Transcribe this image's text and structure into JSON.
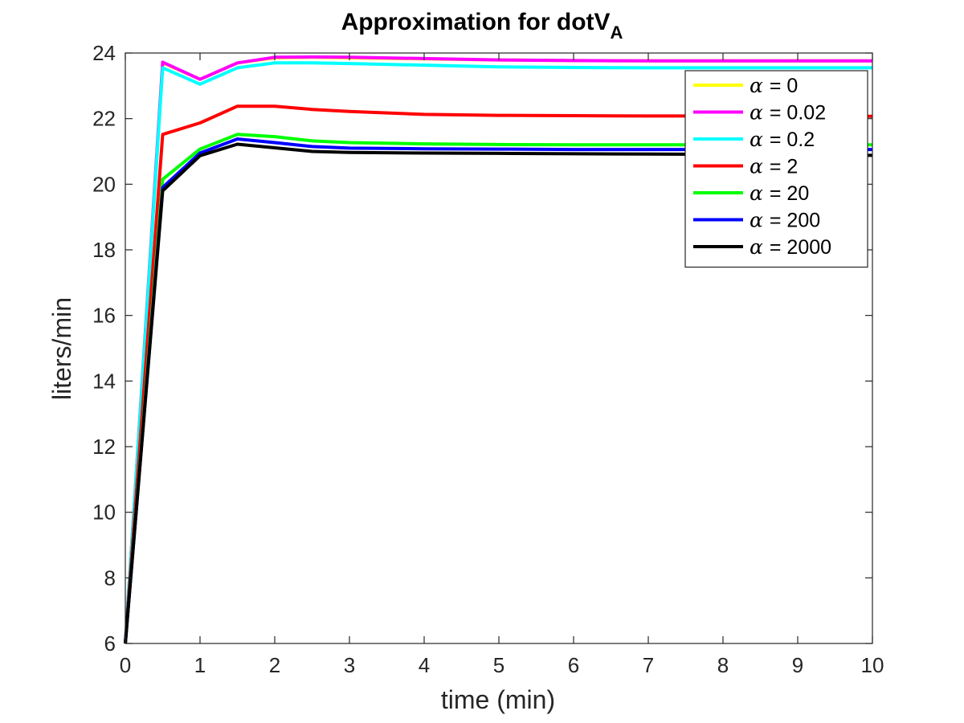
{
  "chart_data": {
    "type": "line",
    "title": "Approximation for dotV",
    "title_subscript": "A",
    "xlabel": "time (min)",
    "ylabel": "liters/min",
    "xlim": [
      0,
      10
    ],
    "ylim": [
      6,
      24
    ],
    "xticks": [
      "0",
      "1",
      "2",
      "3",
      "4",
      "5",
      "6",
      "7",
      "8",
      "9",
      "10"
    ],
    "yticks": [
      "6",
      "8",
      "10",
      "12",
      "14",
      "16",
      "18",
      "20",
      "22",
      "24"
    ],
    "grid": false,
    "legend_position": "top-right",
    "legend_symbol": "α",
    "x": [
      0,
      0.5,
      1,
      1.5,
      2,
      2.5,
      3,
      4,
      5,
      6,
      7,
      8,
      9,
      10
    ],
    "series": [
      {
        "name": "= 0",
        "color": "#ffff00",
        "values": [
          6.0,
          23.7,
          23.2,
          23.7,
          23.85,
          23.87,
          23.85,
          23.82,
          23.79,
          23.77,
          23.76,
          23.76,
          23.76,
          23.76
        ]
      },
      {
        "name": "= 0.02",
        "color": "#ff00ff",
        "values": [
          6.0,
          23.72,
          23.2,
          23.7,
          23.87,
          23.88,
          23.87,
          23.83,
          23.79,
          23.77,
          23.76,
          23.76,
          23.76,
          23.76
        ]
      },
      {
        "name": "= 0.2",
        "color": "#00ffff",
        "values": [
          6.0,
          23.55,
          23.05,
          23.55,
          23.7,
          23.7,
          23.68,
          23.63,
          23.58,
          23.56,
          23.55,
          23.55,
          23.55,
          23.55
        ]
      },
      {
        "name": "= 2",
        "color": "#ff0000",
        "values": [
          6.0,
          21.52,
          21.87,
          22.38,
          22.38,
          22.28,
          22.22,
          22.13,
          22.1,
          22.09,
          22.08,
          22.08,
          22.08,
          22.07
        ]
      },
      {
        "name": "= 20",
        "color": "#00ff00",
        "values": [
          6.0,
          20.15,
          21.07,
          21.52,
          21.45,
          21.32,
          21.27,
          21.23,
          21.21,
          21.2,
          21.2,
          21.2,
          21.2,
          21.2
        ]
      },
      {
        "name": "= 200",
        "color": "#0000ff",
        "values": [
          6.0,
          19.9,
          20.95,
          21.38,
          21.27,
          21.15,
          21.1,
          21.08,
          21.07,
          21.06,
          21.06,
          21.06,
          21.06,
          21.06
        ]
      },
      {
        "name": "= 2000",
        "color": "#000000",
        "values": [
          6.0,
          19.8,
          20.87,
          21.22,
          21.11,
          21.0,
          20.97,
          20.95,
          20.94,
          20.93,
          20.92,
          20.91,
          20.9,
          20.88
        ]
      }
    ]
  }
}
